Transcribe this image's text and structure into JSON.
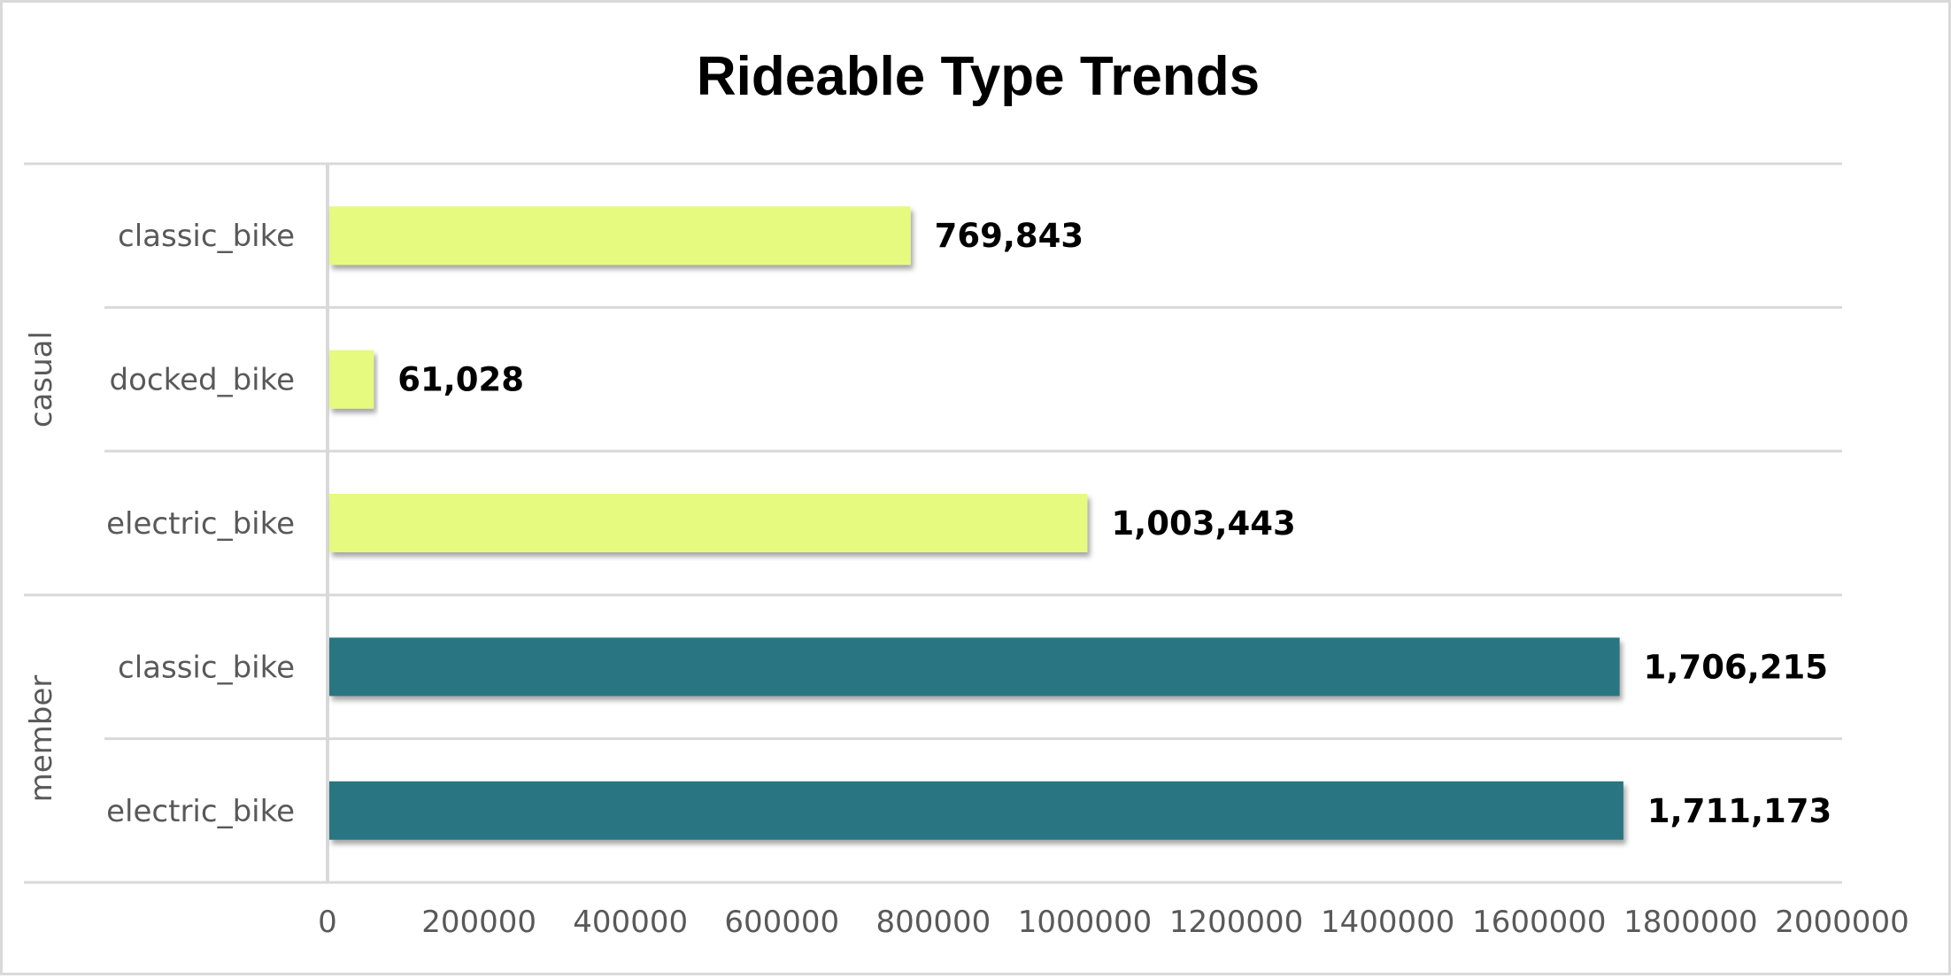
{
  "chart_data": {
    "type": "bar",
    "orientation": "horizontal",
    "title": "Rideable Type Trends",
    "xlim": [
      0,
      2000000
    ],
    "x_ticks": [
      "0",
      "200000",
      "400000",
      "600000",
      "800000",
      "1000000",
      "1200000",
      "1400000",
      "1600000",
      "1800000",
      "2000000"
    ],
    "grid": true,
    "legend": "none",
    "groups": [
      {
        "name": "casual",
        "color": "#e6fa7f",
        "categories": [
          "classic_bike",
          "docked_bike",
          "electric_bike"
        ],
        "values": [
          769843,
          61028,
          1003443
        ],
        "data_labels": [
          "769,843",
          "61,028",
          "1,003,443"
        ]
      },
      {
        "name": "member",
        "color": "#2a7582",
        "categories": [
          "classic_bike",
          "electric_bike"
        ],
        "values": [
          1706215,
          1711173
        ],
        "data_labels": [
          "1,706,215",
          "1,711,173"
        ]
      }
    ]
  }
}
